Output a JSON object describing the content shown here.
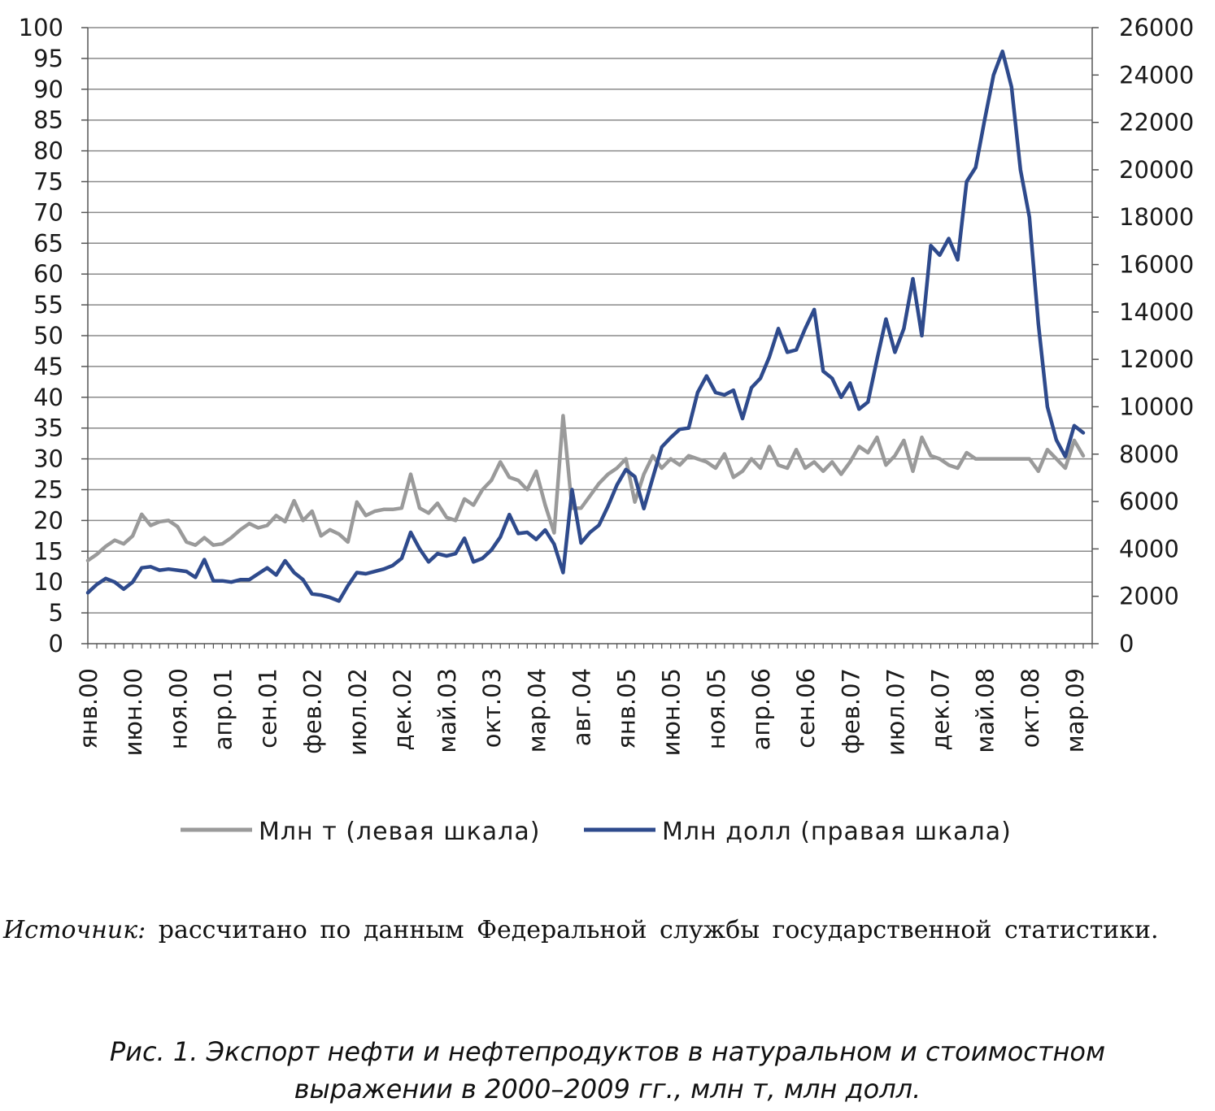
{
  "chart_data": {
    "type": "line",
    "title": "",
    "left_axis": {
      "ylim": [
        0,
        100
      ],
      "ticks": [
        0,
        5,
        10,
        15,
        20,
        25,
        30,
        35,
        40,
        45,
        50,
        55,
        60,
        65,
        70,
        75,
        80,
        85,
        90,
        95,
        100
      ]
    },
    "right_axis": {
      "ylim": [
        0,
        26000
      ],
      "ticks": [
        0,
        2000,
        4000,
        6000,
        8000,
        10000,
        12000,
        14000,
        16000,
        18000,
        20000,
        22000,
        24000,
        26000
      ]
    },
    "x_range": [
      "2000-01",
      "2009-05"
    ],
    "x_tick_labels": [
      {
        "label": "янв.00",
        "date": "2000-01"
      },
      {
        "label": "июн.00",
        "date": "2000-06"
      },
      {
        "label": "ноя.00",
        "date": "2000-11"
      },
      {
        "label": "апр.01",
        "date": "2001-04"
      },
      {
        "label": "сен.01",
        "date": "2001-09"
      },
      {
        "label": "фев.02",
        "date": "2002-02"
      },
      {
        "label": "июл.02",
        "date": "2002-07"
      },
      {
        "label": "дек.02",
        "date": "2002-12"
      },
      {
        "label": "май.03",
        "date": "2003-05"
      },
      {
        "label": "окт.03",
        "date": "2003-10"
      },
      {
        "label": "мар.04",
        "date": "2004-03"
      },
      {
        "label": "авг.04",
        "date": "2004-08"
      },
      {
        "label": "янв.05",
        "date": "2005-01"
      },
      {
        "label": "июн.05",
        "date": "2005-06"
      },
      {
        "label": "ноя.05",
        "date": "2005-11"
      },
      {
        "label": "апр.06",
        "date": "2006-04"
      },
      {
        "label": "сен.06",
        "date": "2006-09"
      },
      {
        "label": "фев.07",
        "date": "2007-02"
      },
      {
        "label": "июл.07",
        "date": "2007-07"
      },
      {
        "label": "дек.07",
        "date": "2007-12"
      },
      {
        "label": "май.08",
        "date": "2008-05"
      },
      {
        "label": "окт.08",
        "date": "2008-10"
      },
      {
        "label": "мар.09",
        "date": "2009-03"
      }
    ],
    "grid": true,
    "legend_position": "bottom",
    "series": [
      {
        "name": "Млн  т (левая шкала)",
        "axis": "left",
        "color": "#9a9a9a",
        "points": [
          [
            "2000-01",
            13.5
          ],
          [
            "2000-02",
            14.5
          ],
          [
            "2000-03",
            15.8
          ],
          [
            "2000-04",
            16.8
          ],
          [
            "2000-05",
            16.2
          ],
          [
            "2000-06",
            17.5
          ],
          [
            "2000-07",
            21.0
          ],
          [
            "2000-08",
            19.2
          ],
          [
            "2000-09",
            19.8
          ],
          [
            "2000-10",
            20.0
          ],
          [
            "2000-11",
            19.0
          ],
          [
            "2000-12",
            16.5
          ],
          [
            "2001-01",
            16.0
          ],
          [
            "2001-02",
            17.2
          ],
          [
            "2001-03",
            16.0
          ],
          [
            "2001-04",
            16.2
          ],
          [
            "2001-05",
            17.2
          ],
          [
            "2001-06",
            18.5
          ],
          [
            "2001-07",
            19.5
          ],
          [
            "2001-08",
            18.8
          ],
          [
            "2001-09",
            19.2
          ],
          [
            "2001-10",
            20.8
          ],
          [
            "2001-11",
            19.8
          ],
          [
            "2001-12",
            23.2
          ],
          [
            "2002-01",
            20.0
          ],
          [
            "2002-02",
            21.5
          ],
          [
            "2002-03",
            17.5
          ],
          [
            "2002-04",
            18.5
          ],
          [
            "2002-05",
            17.8
          ],
          [
            "2002-06",
            16.5
          ],
          [
            "2002-07",
            23.0
          ],
          [
            "2002-08",
            20.8
          ],
          [
            "2002-09",
            21.5
          ],
          [
            "2002-10",
            21.8
          ],
          [
            "2002-11",
            21.8
          ],
          [
            "2002-12",
            22.0
          ],
          [
            "2003-01",
            27.5
          ],
          [
            "2003-02",
            22.0
          ],
          [
            "2003-03",
            21.2
          ],
          [
            "2003-04",
            22.8
          ],
          [
            "2003-05",
            20.5
          ],
          [
            "2003-06",
            20.0
          ],
          [
            "2003-07",
            23.5
          ],
          [
            "2003-08",
            22.5
          ],
          [
            "2003-09",
            25.0
          ],
          [
            "2003-10",
            26.5
          ],
          [
            "2003-11",
            29.5
          ],
          [
            "2003-12",
            27.0
          ],
          [
            "2004-01",
            26.5
          ],
          [
            "2004-02",
            25.0
          ],
          [
            "2004-03",
            28.0
          ],
          [
            "2004-04",
            22.5
          ],
          [
            "2004-05",
            18.0
          ],
          [
            "2004-06",
            37.0
          ],
          [
            "2004-07",
            22.0
          ],
          [
            "2004-08",
            22.0
          ],
          [
            "2004-09",
            24.0
          ],
          [
            "2004-10",
            26.0
          ],
          [
            "2004-11",
            27.5
          ],
          [
            "2004-12",
            28.5
          ],
          [
            "2005-01",
            30.0
          ],
          [
            "2005-02",
            23.0
          ],
          [
            "2005-03",
            27.5
          ],
          [
            "2005-04",
            30.5
          ],
          [
            "2005-05",
            28.5
          ],
          [
            "2005-06",
            30.0
          ],
          [
            "2005-07",
            29.0
          ],
          [
            "2005-08",
            30.5
          ],
          [
            "2005-09",
            30.0
          ],
          [
            "2005-10",
            29.5
          ],
          [
            "2005-11",
            28.5
          ],
          [
            "2005-12",
            30.8
          ],
          [
            "2006-01",
            27.0
          ],
          [
            "2006-02",
            28.0
          ],
          [
            "2006-03",
            30.0
          ],
          [
            "2006-04",
            28.5
          ],
          [
            "2006-05",
            32.0
          ],
          [
            "2006-06",
            29.0
          ],
          [
            "2006-07",
            28.5
          ],
          [
            "2006-08",
            31.5
          ],
          [
            "2006-09",
            28.5
          ],
          [
            "2006-10",
            29.5
          ],
          [
            "2006-11",
            28.0
          ],
          [
            "2006-12",
            29.5
          ],
          [
            "2007-01",
            27.5
          ],
          [
            "2007-02",
            29.5
          ],
          [
            "2007-03",
            32.0
          ],
          [
            "2007-04",
            31.0
          ],
          [
            "2007-05",
            33.5
          ],
          [
            "2007-06",
            29.0
          ],
          [
            "2007-07",
            30.5
          ],
          [
            "2007-08",
            33.0
          ],
          [
            "2007-09",
            28.0
          ],
          [
            "2007-10",
            33.5
          ],
          [
            "2007-11",
            30.5
          ],
          [
            "2007-12",
            30.0
          ],
          [
            "2008-01",
            29.0
          ],
          [
            "2008-02",
            28.5
          ],
          [
            "2008-03",
            31.0
          ],
          [
            "2008-04",
            30.0
          ],
          [
            "2008-05",
            30.0
          ],
          [
            "2008-06",
            30.0
          ],
          [
            "2008-07",
            30.0
          ],
          [
            "2008-08",
            30.0
          ],
          [
            "2008-09",
            30.0
          ],
          [
            "2008-10",
            30.0
          ],
          [
            "2008-11",
            28.0
          ],
          [
            "2008-12",
            31.5
          ],
          [
            "2009-01",
            30.0
          ],
          [
            "2009-02",
            28.5
          ],
          [
            "2009-03",
            33.0
          ],
          [
            "2009-04",
            30.5
          ]
        ]
      },
      {
        "name": "Млн  долл (правая шкала)",
        "axis": "right",
        "color": "#2e4a8c",
        "points": [
          [
            "2000-01",
            2150
          ],
          [
            "2000-02",
            2500
          ],
          [
            "2000-03",
            2750
          ],
          [
            "2000-04",
            2600
          ],
          [
            "2000-05",
            2300
          ],
          [
            "2000-06",
            2600
          ],
          [
            "2000-07",
            3200
          ],
          [
            "2000-08",
            3250
          ],
          [
            "2000-09",
            3100
          ],
          [
            "2000-10",
            3150
          ],
          [
            "2000-11",
            3100
          ],
          [
            "2000-12",
            3050
          ],
          [
            "2001-01",
            2800
          ],
          [
            "2001-02",
            3550
          ],
          [
            "2001-03",
            2650
          ],
          [
            "2001-04",
            2650
          ],
          [
            "2001-05",
            2600
          ],
          [
            "2001-06",
            2700
          ],
          [
            "2001-07",
            2700
          ],
          [
            "2001-08",
            2950
          ],
          [
            "2001-09",
            3200
          ],
          [
            "2001-10",
            2900
          ],
          [
            "2001-11",
            3500
          ],
          [
            "2001-12",
            3000
          ],
          [
            "2002-01",
            2700
          ],
          [
            "2002-02",
            2100
          ],
          [
            "2002-03",
            2050
          ],
          [
            "2002-04",
            1950
          ],
          [
            "2002-05",
            1800
          ],
          [
            "2002-06",
            2450
          ],
          [
            "2002-07",
            3000
          ],
          [
            "2002-08",
            2950
          ],
          [
            "2002-09",
            3050
          ],
          [
            "2002-10",
            3150
          ],
          [
            "2002-11",
            3300
          ],
          [
            "2002-12",
            3600
          ],
          [
            "2003-01",
            4700
          ],
          [
            "2003-02",
            4000
          ],
          [
            "2003-03",
            3450
          ],
          [
            "2003-04",
            3800
          ],
          [
            "2003-05",
            3700
          ],
          [
            "2003-06",
            3800
          ],
          [
            "2003-07",
            4450
          ],
          [
            "2003-08",
            3450
          ],
          [
            "2003-09",
            3600
          ],
          [
            "2003-10",
            3950
          ],
          [
            "2003-11",
            4500
          ],
          [
            "2003-12",
            5450
          ],
          [
            "2004-01",
            4650
          ],
          [
            "2004-02",
            4700
          ],
          [
            "2004-03",
            4400
          ],
          [
            "2004-04",
            4800
          ],
          [
            "2004-05",
            4200
          ],
          [
            "2004-06",
            3000
          ],
          [
            "2004-07",
            6500
          ],
          [
            "2004-08",
            4250
          ],
          [
            "2004-09",
            4700
          ],
          [
            "2004-10",
            5000
          ],
          [
            "2004-11",
            5800
          ],
          [
            "2004-12",
            6700
          ],
          [
            "2005-01",
            7350
          ],
          [
            "2005-02",
            7050
          ],
          [
            "2005-03",
            5700
          ],
          [
            "2005-04",
            7000
          ],
          [
            "2005-05",
            8300
          ],
          [
            "2005-06",
            8700
          ],
          [
            "2005-07",
            9050
          ],
          [
            "2005-08",
            9100
          ],
          [
            "2005-09",
            10600
          ],
          [
            "2005-10",
            11300
          ],
          [
            "2005-11",
            10600
          ],
          [
            "2005-12",
            10500
          ],
          [
            "2006-01",
            10700
          ],
          [
            "2006-02",
            9500
          ],
          [
            "2006-03",
            10800
          ],
          [
            "2006-04",
            11200
          ],
          [
            "2006-05",
            12100
          ],
          [
            "2006-06",
            13300
          ],
          [
            "2006-07",
            12300
          ],
          [
            "2006-08",
            12400
          ],
          [
            "2006-09",
            13300
          ],
          [
            "2006-10",
            14100
          ],
          [
            "2006-11",
            11500
          ],
          [
            "2006-12",
            11200
          ],
          [
            "2007-01",
            10400
          ],
          [
            "2007-02",
            11000
          ],
          [
            "2007-03",
            9900
          ],
          [
            "2007-04",
            10200
          ],
          [
            "2007-05",
            12000
          ],
          [
            "2007-06",
            13700
          ],
          [
            "2007-07",
            12300
          ],
          [
            "2007-08",
            13300
          ],
          [
            "2007-09",
            15400
          ],
          [
            "2007-10",
            13000
          ],
          [
            "2007-11",
            16800
          ],
          [
            "2007-12",
            16400
          ],
          [
            "2008-01",
            17100
          ],
          [
            "2008-02",
            16200
          ],
          [
            "2008-03",
            19500
          ],
          [
            "2008-04",
            20100
          ],
          [
            "2008-05",
            22100
          ],
          [
            "2008-06",
            24000
          ],
          [
            "2008-07",
            25000
          ],
          [
            "2008-08",
            23500
          ],
          [
            "2008-09",
            20000
          ],
          [
            "2008-10",
            18000
          ],
          [
            "2008-11",
            13500
          ],
          [
            "2008-12",
            10000
          ],
          [
            "2009-01",
            8600
          ],
          [
            "2009-02",
            7900
          ],
          [
            "2009-03",
            9200
          ],
          [
            "2009-04",
            8900
          ]
        ]
      }
    ]
  },
  "source": {
    "label": "Источник:",
    "text": " рассчитано по данным Федеральной службы государственной статистики."
  },
  "caption": {
    "line1": "Рис. 1. Экспорт нефти и нефтепродуктов в натуральном и стоимостном",
    "line2": "выражении в 2000–2009 гг., млн т, млн долл."
  }
}
